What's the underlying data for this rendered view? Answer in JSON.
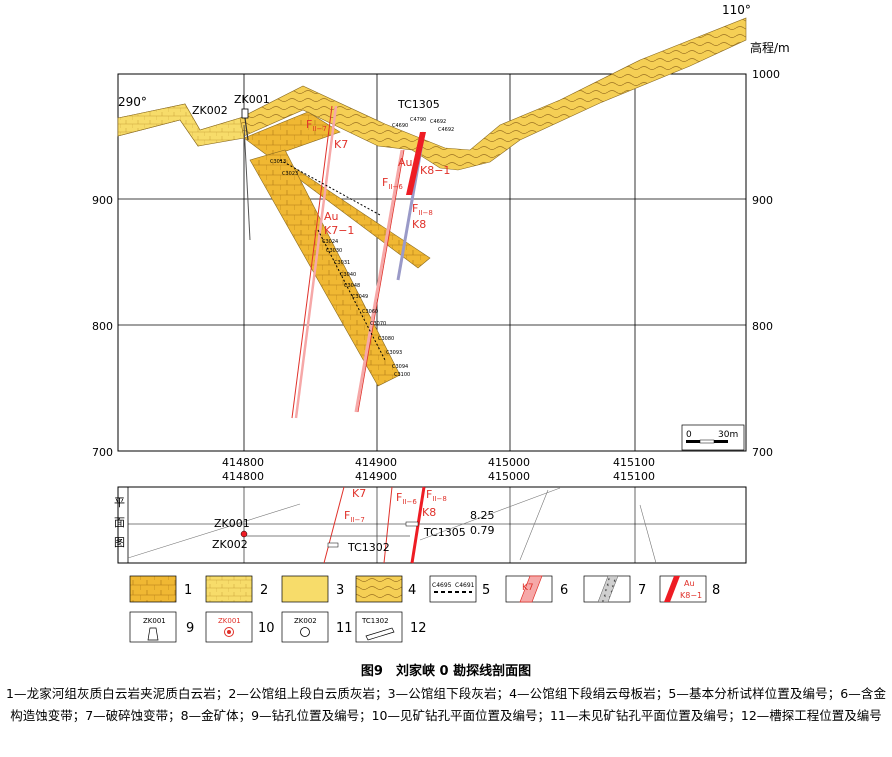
{
  "section": {
    "azimuth_left": "290°",
    "azimuth_right": "110°",
    "elev_axis_title": "高程/m",
    "elev_labels_right": [
      "1000",
      "900",
      "800",
      "700"
    ],
    "elev_labels_left": [
      "900",
      "800",
      "700"
    ],
    "x_labels_top": [
      "414800",
      "414900",
      "415000",
      "415100"
    ],
    "x_labels_bottom": [
      "414800",
      "414900",
      "415000",
      "415100"
    ],
    "scale_bar": {
      "start": "0",
      "end": "30m"
    },
    "drillholes": [
      "ZK002",
      "ZK001"
    ],
    "trench": "TC1305",
    "faults": {
      "f7_main": "F",
      "f7_sub": "II−7",
      "f6_main": "F",
      "f6_sub": "II−6",
      "f8_main": "F",
      "f8_sub": "II−8"
    },
    "veins": {
      "k7": "K7",
      "k8": "K8",
      "au_k7": "Au",
      "k7_1": "K7−1",
      "au_k8": "Au",
      "k8_1": "K8−1"
    },
    "samples": [
      "C4790",
      "C4692",
      "C4690",
      "C4692",
      "C3013",
      "C3023",
      "C3024",
      "C3030",
      "C3031",
      "C3040",
      "C3048",
      "C3049",
      "C3060",
      "C3070",
      "C3080",
      "C3093",
      "C3094",
      "C3100"
    ]
  },
  "plan": {
    "title_chars": [
      "平",
      "面",
      "图"
    ],
    "k7": "K7",
    "k8": "K8",
    "f7_main": "F",
    "f7_sub": "II−7",
    "f6_main": "F",
    "f6_sub": "II−6",
    "f8_main": "F",
    "f8_sub": "II−8",
    "zk001": "ZK001",
    "zk002": "ZK002",
    "tc1302": "TC1302",
    "tc1305": "TC1305",
    "grade_a": "8.25",
    "grade_b": "0.79"
  },
  "legend": {
    "numbers": [
      "1",
      "2",
      "3",
      "4",
      "5",
      "6",
      "7",
      "8",
      "9",
      "10",
      "11",
      "12"
    ],
    "sample_a": "C4695",
    "sample_b": "C4691",
    "k7": "K7",
    "au": "Au",
    "k8_1": "K8−1",
    "zk001_a": "ZK001",
    "zk001_b": "ZK001",
    "zk002": "ZK002",
    "tc1302": "TC1302"
  },
  "caption": {
    "title": "图9　刘家峡 0 勘探线剖面图",
    "notes": "1—龙家河组灰质白云岩夹泥质白云岩；2—公馆组上段白云质灰岩；3—公馆组下段灰岩；4—公馆组下段绢云母板岩；5—基本分析试样位置及编号；6—含金构造蚀变带；7—破碎蚀变带；8—金矿体；9—钻孔位置及编号；10—见矿钻孔平面位置及编号；11—未见矿钻孔平面位置及编号；12—槽探工程位置及编号"
  },
  "colors": {
    "rock_fill": "#f0b833",
    "limestone_fill": "#f7dc6a",
    "fault_red": "#e0312a",
    "ore_red": "#ee1c24",
    "alter_pink": "#f6a8a8"
  }
}
